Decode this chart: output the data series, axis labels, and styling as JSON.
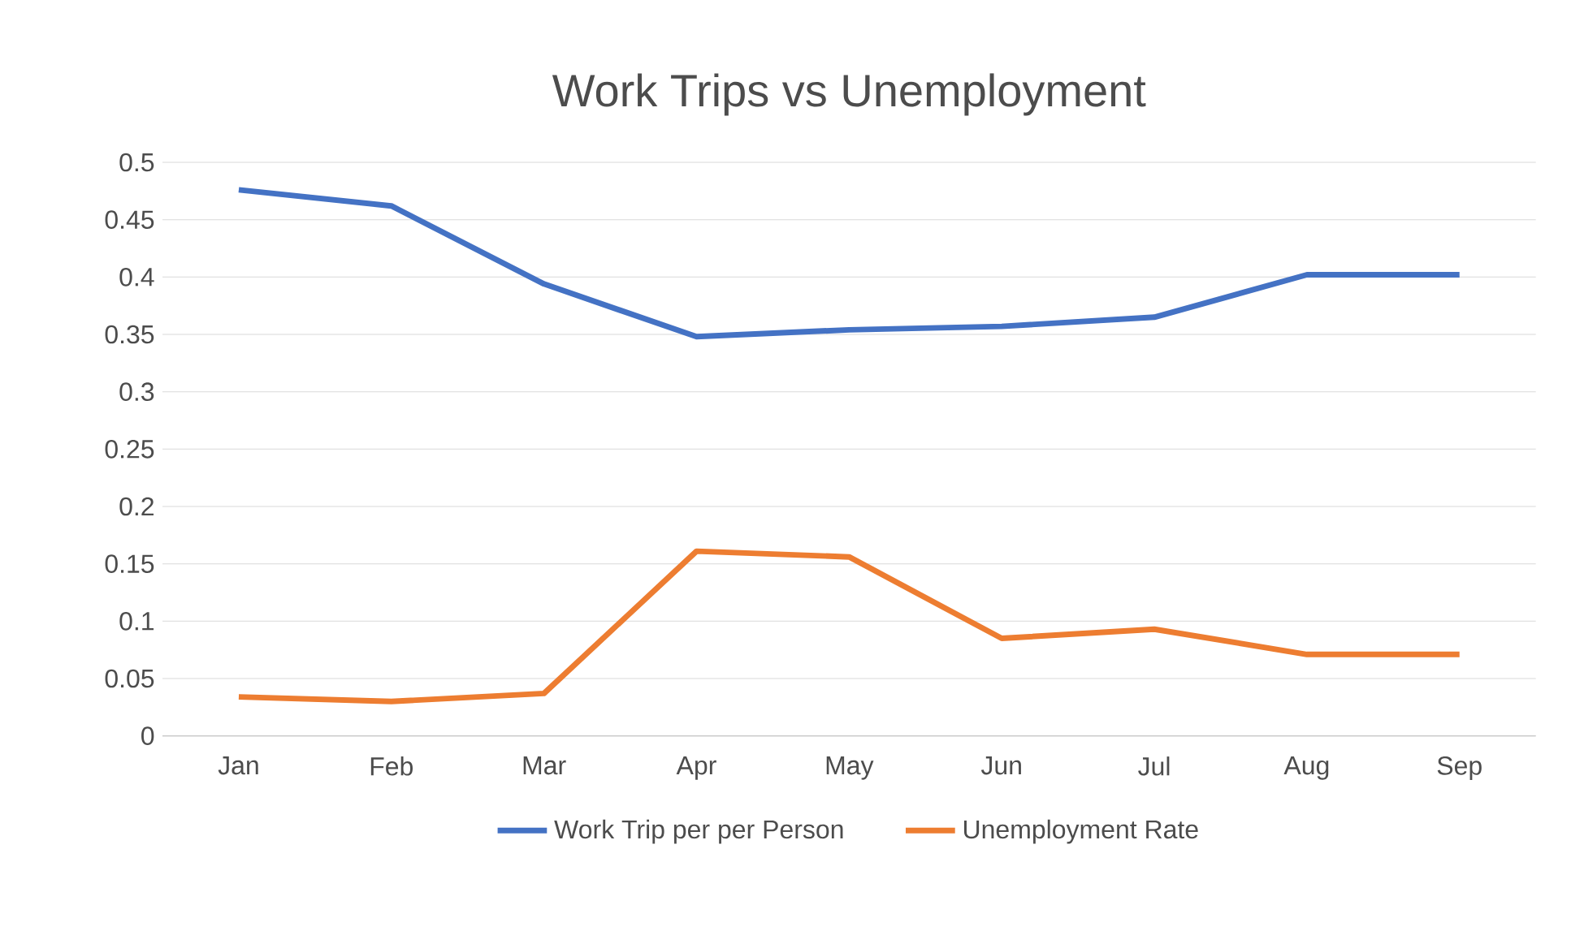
{
  "chart_data": {
    "type": "line",
    "title": "Work Trips vs Unemployment",
    "categories": [
      "Jan",
      "Feb",
      "Mar",
      "Apr",
      "May",
      "Jun",
      "Jul",
      "Aug",
      "Sep"
    ],
    "series": [
      {
        "name": "Work Trip per per Person",
        "color": "#4472c4",
        "values": [
          0.476,
          0.462,
          0.394,
          0.348,
          0.354,
          0.357,
          0.365,
          0.402,
          0.402
        ]
      },
      {
        "name": "Unemployment Rate",
        "color": "#ed7d31",
        "values": [
          0.034,
          0.03,
          0.037,
          0.161,
          0.156,
          0.085,
          0.093,
          0.071,
          0.071
        ]
      }
    ],
    "ylim": [
      0,
      0.5
    ],
    "yticks": [
      0,
      0.05,
      0.1,
      0.15,
      0.2,
      0.25,
      0.3,
      0.35,
      0.4,
      0.45,
      0.5
    ],
    "grid": "y",
    "legend": "bottom"
  }
}
